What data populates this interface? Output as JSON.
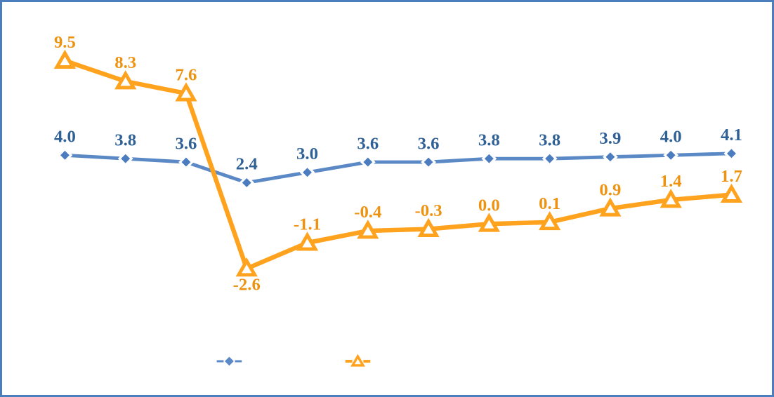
{
  "frame": {
    "border_color": "#4A7EBC",
    "background_color": "#FFFFFF"
  },
  "chart_data": {
    "type": "line",
    "title": "",
    "xlabel": "",
    "ylabel": "",
    "x_count": 12,
    "categories": [],
    "axes_visible": false,
    "gridlines": false,
    "data_labels_visible": true,
    "series": [
      {
        "id": "blue-diamond-series",
        "marker": "diamond",
        "line_color": "#5B89C6",
        "marker_fill": "#4A7CBF",
        "marker_ring": "#FFFFFF",
        "label_color": "#2F6096",
        "values": [
          4.0,
          3.8,
          3.6,
          2.4,
          3.0,
          3.6,
          3.6,
          3.8,
          3.8,
          3.9,
          4.0,
          4.1
        ],
        "labels": [
          "4.0",
          "3.8",
          "3.6",
          "2.4",
          "3.0",
          "3.6",
          "3.6",
          "3.8",
          "3.8",
          "3.9",
          "4.0",
          "4.1"
        ],
        "label_positions": [
          "above",
          "above",
          "above",
          "above",
          "above",
          "above",
          "above",
          "above",
          "above",
          "above",
          "above",
          "above"
        ]
      },
      {
        "id": "orange-triangle-series",
        "marker": "triangle",
        "line_color": "#FFA21E",
        "marker_fill": "#FFFFFF",
        "marker_ring": "#FFA21E",
        "label_color": "#EE9311",
        "values": [
          9.5,
          8.3,
          7.6,
          -2.6,
          -1.1,
          -0.4,
          -0.3,
          0.0,
          0.1,
          0.9,
          1.4,
          1.7
        ],
        "labels": [
          "9.5",
          "8.3",
          "7.6",
          "-2.6",
          "-1.1",
          "-0.4",
          "-0.3",
          "0.0",
          "0.1",
          "0.9",
          "1.4",
          "1.7"
        ],
        "label_positions": [
          "above",
          "above",
          "above",
          "below",
          "above",
          "above",
          "above",
          "above",
          "above",
          "above",
          "above",
          "above"
        ]
      }
    ],
    "legend": {
      "position": "bottom",
      "entries": [
        {
          "marker": "diamond",
          "color": "#5B89C6",
          "label": ""
        },
        {
          "marker": "triangle",
          "color": "#FFA21E",
          "label": ""
        }
      ]
    }
  }
}
